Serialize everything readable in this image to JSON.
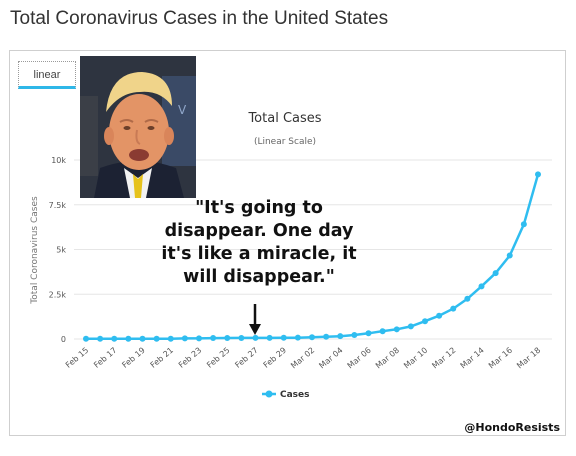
{
  "page": {
    "title": "Total Coronavirus Cases in the United States"
  },
  "tabs": [
    {
      "label": "linear"
    }
  ],
  "annotation": {
    "quote_lines": [
      "\"It's going to",
      "disappear. One day",
      "it's like a miracle, it",
      "will disappear.\""
    ],
    "watermark": "@HondoResists",
    "arrow_target_category": "Feb 27"
  },
  "photo": {
    "icon": "person-photo"
  },
  "colors": {
    "series": "#2fbdf0",
    "grid": "#e6e6e6",
    "accent": "#2fb7e8"
  },
  "chart_data": {
    "type": "line",
    "title": "Total Cases",
    "subtitle": "(Linear Scale)",
    "ylabel": "Total Coronavirus Cases",
    "xlabel": "",
    "ylim": [
      0,
      10000
    ],
    "yticks": [
      0,
      2500,
      5000,
      7500,
      10000
    ],
    "ytick_labels": [
      "0",
      "2.5k",
      "5k",
      "7.5k",
      "10k"
    ],
    "grid": true,
    "legend": "bottom-center",
    "categories": [
      "Feb 15",
      "Feb 16",
      "Feb 17",
      "Feb 18",
      "Feb 19",
      "Feb 20",
      "Feb 21",
      "Feb 22",
      "Feb 23",
      "Feb 24",
      "Feb 25",
      "Feb 26",
      "Feb 27",
      "Feb 28",
      "Feb 29",
      "Mar 01",
      "Mar 02",
      "Mar 03",
      "Mar 04",
      "Mar 05",
      "Mar 06",
      "Mar 07",
      "Mar 08",
      "Mar 09",
      "Mar 10",
      "Mar 11",
      "Mar 12",
      "Mar 13",
      "Mar 14",
      "Mar 15",
      "Mar 16",
      "Mar 17",
      "Mar 18"
    ],
    "xtick_labels": [
      "Feb 15",
      "Feb 17",
      "Feb 19",
      "Feb 21",
      "Feb 23",
      "Feb 25",
      "Feb 27",
      "Feb 29",
      "Mar 02",
      "Mar 04",
      "Mar 06",
      "Mar 08",
      "Mar 10",
      "Mar 12",
      "Mar 14",
      "Mar 16",
      "Mar 18"
    ],
    "series": [
      {
        "name": "Cases",
        "values": [
          15,
          15,
          15,
          15,
          15,
          15,
          15,
          35,
          35,
          53,
          57,
          59,
          60,
          62,
          68,
          75,
          100,
          124,
          158,
          221,
          319,
          435,
          541,
          704,
          994,
          1301,
          1697,
          2247,
          2943,
          3680,
          4663,
          6411,
          9197
        ]
      }
    ]
  }
}
